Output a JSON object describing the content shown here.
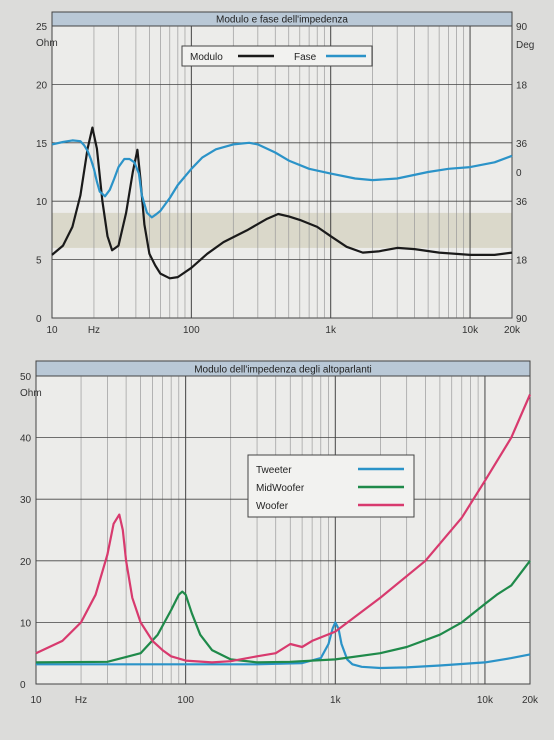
{
  "colors": {
    "page_bg": "#dcdcda",
    "plot_bg": "#ececea",
    "title_bar": "#b9c8d6",
    "band": "#d6d3c2",
    "grid_major": "#444444",
    "grid_minor": "#9a9a9a",
    "black": "#1a1a1a",
    "blue": "#2b93c8",
    "green": "#1f8a4a",
    "pink": "#d83a6e"
  },
  "chart_data": [
    {
      "type": "line",
      "title": "Modulo e fase dell'impedenza",
      "xscale": "log",
      "xlim": [
        10,
        20000
      ],
      "x_tick_labels": [
        "10",
        "Hz",
        "100",
        "1k",
        "10k",
        "20k"
      ],
      "ylim": [
        0,
        25
      ],
      "y_unit": "Ohm",
      "y_tick_labels": [
        "0",
        "5",
        "10",
        "15",
        "20",
        "25"
      ],
      "y2_unit": "Deg",
      "y2lim": [
        -90,
        90
      ],
      "y2_tick_labels": [
        "90",
        "18",
        "36",
        "0",
        "36",
        "18",
        "90"
      ],
      "legend_position": "top-center",
      "series": [
        {
          "name": "Modulo",
          "color": "black",
          "axis": "left",
          "x": [
            10,
            12,
            14,
            16,
            18,
            19.5,
            21,
            23,
            25,
            27,
            30,
            34,
            38,
            41,
            43,
            46,
            50,
            55,
            60,
            70,
            80,
            100,
            130,
            170,
            250,
            350,
            420,
            500,
            600,
            800,
            1000,
            1300,
            1700,
            2200,
            3000,
            4000,
            6000,
            10000,
            15000,
            20000
          ],
          "values": [
            5.4,
            6.2,
            7.8,
            10.5,
            14.5,
            16.3,
            14.5,
            10.0,
            7.0,
            5.8,
            6.2,
            9.0,
            12.5,
            14.4,
            12.0,
            8.0,
            5.5,
            4.5,
            3.8,
            3.4,
            3.5,
            4.3,
            5.5,
            6.5,
            7.5,
            8.5,
            8.9,
            8.7,
            8.4,
            7.8,
            7.0,
            6.1,
            5.6,
            5.7,
            6.0,
            5.9,
            5.6,
            5.4,
            5.4,
            5.6
          ]
        },
        {
          "name": "Fase",
          "color": "blue",
          "axis": "right",
          "x": [
            10,
            12,
            14,
            16,
            17,
            18,
            19,
            20,
            21,
            22,
            24,
            26,
            28,
            30,
            33,
            36,
            39,
            42,
            44,
            48,
            52,
            56,
            60,
            70,
            80,
            100,
            120,
            150,
            200,
            260,
            300,
            400,
            500,
            700,
            1000,
            1500,
            2000,
            3000,
            5000,
            7000,
            10000,
            15000,
            20000
          ],
          "values": [
            17,
            18.5,
            19.5,
            19,
            16.5,
            13,
            8,
            2,
            -6,
            -12,
            -15,
            -11,
            -4,
            3,
            8,
            8,
            6,
            -1,
            -14,
            -25,
            -28,
            -26,
            -24,
            -16,
            -8,
            2,
            9,
            14,
            17,
            18,
            17,
            12,
            7,
            2,
            -1,
            -4,
            -5,
            -4,
            0,
            2,
            3,
            6,
            10
          ]
        }
      ]
    },
    {
      "type": "line",
      "title": "Modulo  dell'impedenza degli altoparlanti",
      "xscale": "log",
      "xlim": [
        10,
        20000
      ],
      "x_tick_labels": [
        "10",
        "Hz",
        "100",
        "1k",
        "10k",
        "20k"
      ],
      "ylim": [
        0,
        50
      ],
      "y_unit": "Ohm",
      "y_tick_labels": [
        "0",
        "10",
        "20",
        "30",
        "40",
        "50"
      ],
      "legend_position": "center",
      "series": [
        {
          "name": "Tweeter",
          "color": "blue",
          "x": [
            10,
            100,
            300,
            600,
            800,
            900,
            960,
            1000,
            1050,
            1100,
            1200,
            1300,
            1500,
            2000,
            3000,
            5000,
            10000,
            15000,
            20000
          ],
          "values": [
            3.2,
            3.2,
            3.2,
            3.4,
            4.2,
            6.5,
            9.0,
            10.0,
            9.0,
            6.5,
            4.0,
            3.2,
            2.8,
            2.6,
            2.7,
            3.0,
            3.5,
            4.2,
            4.8
          ]
        },
        {
          "name": "MidWoofer",
          "color": "green",
          "x": [
            10,
            30,
            50,
            65,
            80,
            90,
            95,
            100,
            110,
            125,
            150,
            200,
            300,
            500,
            1000,
            2000,
            3000,
            5000,
            7000,
            10000,
            12000,
            15000,
            20000
          ],
          "values": [
            3.5,
            3.6,
            5.0,
            8.0,
            12.0,
            14.5,
            15.0,
            14.5,
            11.5,
            8.0,
            5.5,
            4.0,
            3.5,
            3.6,
            4.0,
            5.0,
            6.0,
            8.0,
            10.0,
            13.0,
            14.5,
            16.0,
            20.0
          ]
        },
        {
          "name": "Woofer",
          "color": "pink",
          "x": [
            10,
            15,
            20,
            25,
            30,
            33,
            36,
            38,
            40,
            44,
            50,
            60,
            70,
            80,
            100,
            150,
            200,
            300,
            400,
            500,
            600,
            700,
            1000,
            2000,
            4000,
            7000,
            10000,
            15000,
            20000
          ],
          "values": [
            5.0,
            7.0,
            10.0,
            14.5,
            21.0,
            26.0,
            27.5,
            25.0,
            20.0,
            14.0,
            10.0,
            7.0,
            5.5,
            4.5,
            3.8,
            3.5,
            3.7,
            4.5,
            5.0,
            6.5,
            6.0,
            7.0,
            8.5,
            14.0,
            20.0,
            27.0,
            33.0,
            40.0,
            47.0
          ]
        }
      ]
    }
  ]
}
